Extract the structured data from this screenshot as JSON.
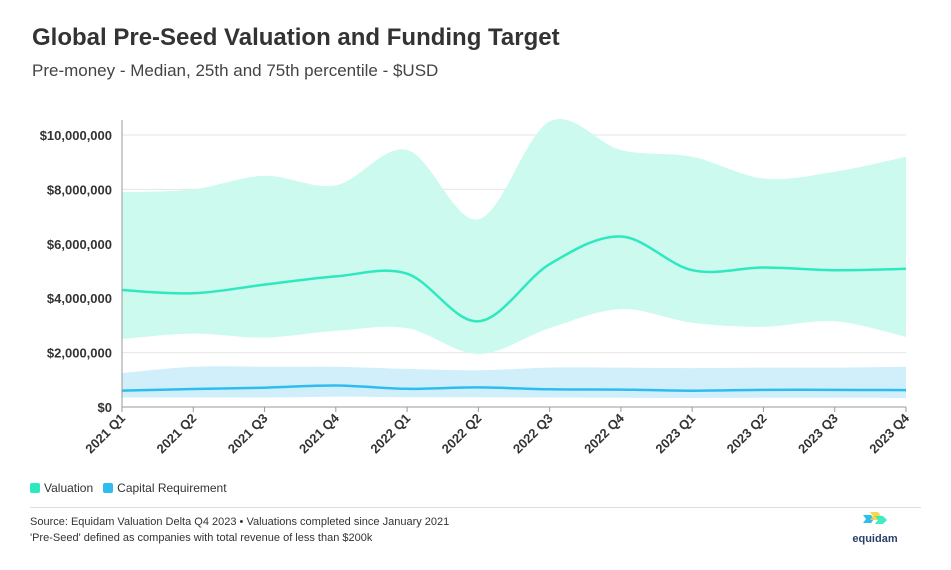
{
  "chart_data": {
    "type": "area",
    "title": "Global Pre-Seed Valuation and Funding Target",
    "subtitle": "Pre-money - Median, 25th and 75th percentile - $USD",
    "categories": [
      "2021 Q1",
      "2021 Q2",
      "2021 Q3",
      "2021 Q4",
      "2022 Q1",
      "2022 Q2",
      "2022 Q3",
      "2022 Q4",
      "2023 Q1",
      "2023 Q2",
      "2023 Q3",
      "2023 Q4"
    ],
    "ylim": [
      0,
      10000000
    ],
    "yticks": [
      0,
      2000000,
      4000000,
      6000000,
      8000000,
      10000000
    ],
    "ytick_labels": [
      "$0",
      "$2,000,000",
      "$4,000,000",
      "$6,000,000",
      "$8,000,000",
      "$10,000,000"
    ],
    "grid": true,
    "legend": "bottom-left",
    "series": [
      {
        "name": "Valuation",
        "color": "#2ee8c0",
        "band_color": "#c9faee",
        "median": [
          4300000,
          4180000,
          4500000,
          4800000,
          4900000,
          3150000,
          5250000,
          6270000,
          5030000,
          5130000,
          5030000,
          5080000
        ],
        "p25": [
          2500000,
          2700000,
          2550000,
          2800000,
          2900000,
          1950000,
          2900000,
          3600000,
          3100000,
          2950000,
          3150000,
          2580000
        ],
        "p75": [
          7900000,
          8000000,
          8500000,
          8150000,
          9450000,
          6900000,
          10500000,
          9450000,
          9200000,
          8400000,
          8650000,
          9200000
        ]
      },
      {
        "name": "Capital Requirement",
        "color": "#2fbdf0",
        "band_color": "#cdeefb",
        "median": [
          600000,
          660000,
          710000,
          790000,
          670000,
          720000,
          650000,
          640000,
          600000,
          630000,
          630000,
          620000
        ],
        "p25": [
          350000,
          350000,
          350000,
          380000,
          360000,
          360000,
          350000,
          340000,
          330000,
          340000,
          340000,
          330000
        ],
        "p75": [
          1250000,
          1480000,
          1480000,
          1480000,
          1400000,
          1350000,
          1450000,
          1450000,
          1430000,
          1450000,
          1450000,
          1480000
        ]
      }
    ]
  },
  "footer": {
    "source": "Source: Equidam Valuation Delta Q4 2023 • Valuations completed since January 2021",
    "note": "'Pre-Seed' defined as companies with total revenue of less than $200k",
    "brand": "equidam"
  },
  "colors": {
    "brand_blue": "#2fbdf0",
    "brand_mint": "#2ee8c0",
    "brand_yellow": "#f2d33a"
  }
}
